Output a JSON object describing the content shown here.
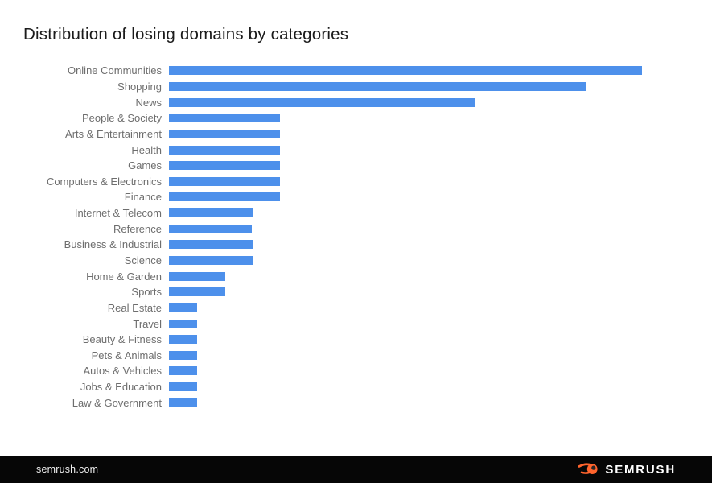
{
  "title": "Distribution of losing domains by categories",
  "chart_data": {
    "type": "bar",
    "orientation": "horizontal",
    "title": "Distribution of losing domains by categories",
    "categories": [
      "Online Communities",
      "Shopping",
      "News",
      "People & Society",
      "Arts & Entertainment",
      "Health",
      "Games",
      "Computers & Electronics",
      "Finance",
      "Internet & Telecom",
      "Reference",
      "Business & Industrial",
      "Science",
      "Home & Garden",
      "Sports",
      "Real Estate",
      "Travel",
      "Beauty & Fitness",
      "Pets & Animals",
      "Autos & Vehicles",
      "Jobs & Education",
      "Law & Government"
    ],
    "values": [
      100,
      88.3,
      64.8,
      23.5,
      23.5,
      23.5,
      23.5,
      23.5,
      23.5,
      17.7,
      17.5,
      17.7,
      17.9,
      11.9,
      11.9,
      6,
      6,
      6,
      6,
      6,
      6,
      6
    ],
    "value_note": "relative bar length, longest bar = 100; no numeric axis shown in image",
    "xlabel": "",
    "ylabel": "",
    "xlim": [
      0,
      100
    ],
    "grid": false,
    "legend": false,
    "bar_color": "#4d90eb",
    "label_color": "#6e6e6e"
  },
  "footer": {
    "website": "semrush.com",
    "brand": "SEMRUSH",
    "background": "#060606",
    "logo_orange": "#ff642d",
    "logo_pupil": "#262626"
  }
}
